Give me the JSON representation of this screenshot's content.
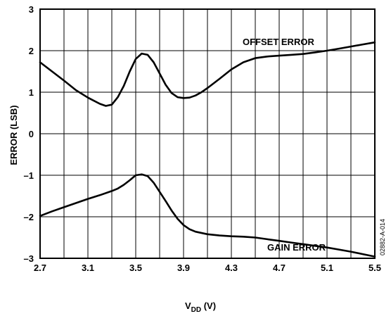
{
  "chart_data": {
    "type": "line",
    "xlabel_main": "V",
    "xlabel_sub": "DD",
    "xlabel_unit": " (V)",
    "ylabel": "ERROR (LSB)",
    "xlim": [
      2.7,
      5.5
    ],
    "ylim": [
      -3,
      3
    ],
    "x_ticks": [
      2.7,
      3.1,
      3.5,
      3.9,
      4.3,
      4.7,
      5.1,
      5.5
    ],
    "x_tick_labels": [
      "2.7",
      "3.1",
      "3.5",
      "3.9",
      "4.3",
      "4.7",
      "5.1",
      "5.5"
    ],
    "y_ticks": [
      -3,
      -2,
      -1,
      0,
      1,
      2,
      3
    ],
    "y_tick_labels": [
      "–3",
      "–2",
      "–1",
      "0",
      "1",
      "2",
      "3"
    ],
    "x_grid_step": 0.2,
    "grid": true,
    "series": [
      {
        "name": "OFFSET ERROR",
        "x": [
          2.7,
          2.8,
          2.9,
          3.0,
          3.1,
          3.2,
          3.25,
          3.3,
          3.35,
          3.4,
          3.45,
          3.5,
          3.55,
          3.6,
          3.65,
          3.7,
          3.75,
          3.8,
          3.85,
          3.9,
          3.95,
          4.0,
          4.05,
          4.1,
          4.2,
          4.3,
          4.4,
          4.5,
          4.6,
          4.7,
          4.8,
          4.9,
          5.0,
          5.1,
          5.2,
          5.3,
          5.4,
          5.5
        ],
        "y": [
          1.72,
          1.5,
          1.28,
          1.05,
          0.87,
          0.72,
          0.67,
          0.7,
          0.88,
          1.15,
          1.5,
          1.8,
          1.93,
          1.9,
          1.72,
          1.45,
          1.18,
          0.98,
          0.88,
          0.86,
          0.87,
          0.92,
          1.0,
          1.1,
          1.32,
          1.55,
          1.72,
          1.82,
          1.86,
          1.88,
          1.9,
          1.92,
          1.96,
          2.0,
          2.05,
          2.1,
          2.15,
          2.2
        ]
      },
      {
        "name": "GAIN ERROR",
        "x": [
          2.7,
          2.8,
          2.9,
          3.0,
          3.1,
          3.2,
          3.3,
          3.35,
          3.4,
          3.45,
          3.5,
          3.55,
          3.6,
          3.65,
          3.7,
          3.75,
          3.8,
          3.85,
          3.9,
          3.95,
          4.0,
          4.1,
          4.2,
          4.3,
          4.4,
          4.5,
          4.6,
          4.7,
          4.8,
          4.9,
          5.0,
          5.1,
          5.2,
          5.3,
          5.4,
          5.5
        ],
        "y": [
          -1.98,
          -1.87,
          -1.77,
          -1.67,
          -1.57,
          -1.48,
          -1.38,
          -1.32,
          -1.23,
          -1.12,
          -1.0,
          -0.98,
          -1.02,
          -1.18,
          -1.4,
          -1.62,
          -1.85,
          -2.05,
          -2.2,
          -2.3,
          -2.36,
          -2.42,
          -2.45,
          -2.47,
          -2.48,
          -2.5,
          -2.54,
          -2.58,
          -2.62,
          -2.66,
          -2.7,
          -2.74,
          -2.79,
          -2.84,
          -2.9,
          -2.96
        ]
      }
    ]
  },
  "doc_id": "02882-A-014"
}
